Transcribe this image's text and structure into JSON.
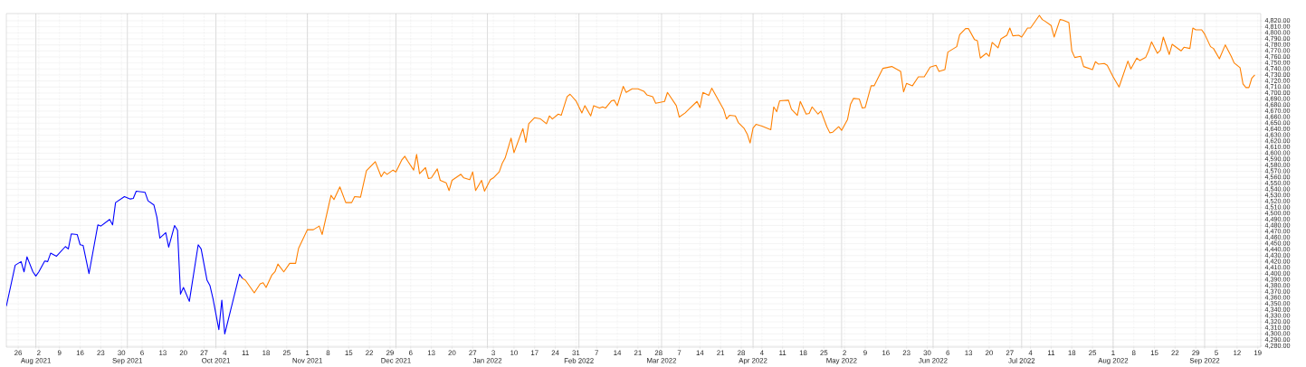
{
  "chart_data": {
    "type": "line",
    "xlim": [
      "2021-07-22",
      "2022-09-20"
    ],
    "ylim": [
      4278,
      4832
    ],
    "grid": true,
    "xticks": [
      {
        "value": "2021-07-26",
        "label": "26"
      },
      {
        "value": "2021-08-02",
        "label": "2"
      },
      {
        "value": "2021-08-09",
        "label": "9"
      },
      {
        "value": "2021-08-16",
        "label": "16"
      },
      {
        "value": "2021-08-23",
        "label": "23"
      },
      {
        "value": "2021-08-30",
        "label": "30"
      },
      {
        "value": "2021-09-06",
        "label": "6"
      },
      {
        "value": "2021-09-13",
        "label": "13"
      },
      {
        "value": "2021-09-20",
        "label": "20"
      },
      {
        "value": "2021-09-27",
        "label": "27"
      },
      {
        "value": "2021-10-04",
        "label": "4"
      },
      {
        "value": "2021-10-11",
        "label": "11"
      },
      {
        "value": "2021-10-18",
        "label": "18"
      },
      {
        "value": "2021-10-25",
        "label": "25"
      },
      {
        "value": "2021-11-01",
        "label": "1"
      },
      {
        "value": "2021-11-08",
        "label": "8"
      },
      {
        "value": "2021-11-15",
        "label": "15"
      },
      {
        "value": "2021-11-22",
        "label": "22"
      },
      {
        "value": "2021-11-29",
        "label": "29"
      },
      {
        "value": "2021-12-06",
        "label": "6"
      },
      {
        "value": "2021-12-13",
        "label": "13"
      },
      {
        "value": "2021-12-20",
        "label": "20"
      },
      {
        "value": "2021-12-27",
        "label": "27"
      },
      {
        "value": "2022-01-03",
        "label": "3"
      },
      {
        "value": "2022-01-10",
        "label": "10"
      },
      {
        "value": "2022-01-17",
        "label": "17"
      },
      {
        "value": "2022-01-24",
        "label": "24"
      },
      {
        "value": "2022-01-31",
        "label": "31"
      },
      {
        "value": "2022-02-07",
        "label": "7"
      },
      {
        "value": "2022-02-14",
        "label": "14"
      },
      {
        "value": "2022-02-21",
        "label": "21"
      },
      {
        "value": "2022-02-28",
        "label": "28"
      },
      {
        "value": "2022-03-07",
        "label": "7"
      },
      {
        "value": "2022-03-14",
        "label": "14"
      },
      {
        "value": "2022-03-21",
        "label": "21"
      },
      {
        "value": "2022-03-28",
        "label": "28"
      },
      {
        "value": "2022-04-04",
        "label": "4"
      },
      {
        "value": "2022-04-11",
        "label": "11"
      },
      {
        "value": "2022-04-18",
        "label": "18"
      },
      {
        "value": "2022-04-25",
        "label": "25"
      },
      {
        "value": "2022-05-02",
        "label": "2"
      },
      {
        "value": "2022-05-09",
        "label": "9"
      },
      {
        "value": "2022-05-16",
        "label": "16"
      },
      {
        "value": "2022-05-23",
        "label": "23"
      },
      {
        "value": "2022-05-30",
        "label": "30"
      },
      {
        "value": "2022-06-06",
        "label": "6"
      },
      {
        "value": "2022-06-13",
        "label": "13"
      },
      {
        "value": "2022-06-20",
        "label": "20"
      },
      {
        "value": "2022-06-27",
        "label": "27"
      },
      {
        "value": "2022-07-04",
        "label": "4"
      },
      {
        "value": "2022-07-11",
        "label": "11"
      },
      {
        "value": "2022-07-18",
        "label": "18"
      },
      {
        "value": "2022-07-25",
        "label": "25"
      },
      {
        "value": "2022-08-01",
        "label": "1"
      },
      {
        "value": "2022-08-08",
        "label": "8"
      },
      {
        "value": "2022-08-15",
        "label": "15"
      },
      {
        "value": "2022-08-22",
        "label": "22"
      },
      {
        "value": "2022-08-29",
        "label": "29"
      },
      {
        "value": "2022-09-05",
        "label": "5"
      },
      {
        "value": "2022-09-12",
        "label": "12"
      },
      {
        "value": "2022-09-19",
        "label": "19"
      }
    ],
    "x2lim": [
      "2021-07-22",
      "2022-09-20"
    ],
    "x2ticks": [
      {
        "value": "2021-08",
        "label": "Aug 2021"
      },
      {
        "value": "2021-09",
        "label": "Sep 2021"
      },
      {
        "value": "2021-10",
        "label": "Oct 2021"
      },
      {
        "value": "2021-11",
        "label": "Nov 2021"
      },
      {
        "value": "2021-12",
        "label": "Dec 2021"
      },
      {
        "value": "2022-01",
        "label": "Jan 2022"
      },
      {
        "value": "2022-02",
        "label": "Feb 2022"
      },
      {
        "value": "2022-03",
        "label": "Mar 2022"
      },
      {
        "value": "2022-04",
        "label": "Apr 2022"
      },
      {
        "value": "2022-05",
        "label": "May 2022"
      },
      {
        "value": "2022-06",
        "label": "Jun 2022"
      },
      {
        "value": "2022-07",
        "label": "Jul 2022"
      },
      {
        "value": "2022-08",
        "label": "Aug 2022"
      },
      {
        "value": "2022-09",
        "label": "Sep 2022"
      }
    ],
    "yticks": [
      {
        "value": 4280,
        "label": "4,280.00"
      },
      {
        "value": 4290,
        "label": "4,290.00"
      },
      {
        "value": 4300,
        "label": "4,300.00"
      },
      {
        "value": 4310,
        "label": "4,310.00"
      },
      {
        "value": 4320,
        "label": "4,320.00"
      },
      {
        "value": 4330,
        "label": "4,330.00"
      },
      {
        "value": 4340,
        "label": "4,340.00"
      },
      {
        "value": 4350,
        "label": "4,350.00"
      },
      {
        "value": 4360,
        "label": "4,360.00"
      },
      {
        "value": 4370,
        "label": "4,370.00"
      },
      {
        "value": 4380,
        "label": "4,380.00"
      },
      {
        "value": 4390,
        "label": "4,390.00"
      },
      {
        "value": 4400,
        "label": "4,400.00"
      },
      {
        "value": 4410,
        "label": "4,410.00"
      },
      {
        "value": 4420,
        "label": "4,420.00"
      },
      {
        "value": 4430,
        "label": "4,430.00"
      },
      {
        "value": 4440,
        "label": "4,440.00"
      },
      {
        "value": 4450,
        "label": "4,450.00"
      },
      {
        "value": 4460,
        "label": "4,460.00"
      },
      {
        "value": 4470,
        "label": "4,470.00"
      },
      {
        "value": 4480,
        "label": "4,480.00"
      },
      {
        "value": 4490,
        "label": "4,490.00"
      },
      {
        "value": 4500,
        "label": "4,500.00"
      },
      {
        "value": 4510,
        "label": "4,510.00"
      },
      {
        "value": 4520,
        "label": "4,520.00"
      },
      {
        "value": 4530,
        "label": "4,530.00"
      },
      {
        "value": 4540,
        "label": "4,540.00"
      },
      {
        "value": 4550,
        "label": "4,550.00"
      },
      {
        "value": 4560,
        "label": "4,560.00"
      },
      {
        "value": 4570,
        "label": "4,570.00"
      },
      {
        "value": 4580,
        "label": "4,580.00"
      },
      {
        "value": 4590,
        "label": "4,590.00"
      },
      {
        "value": 4600,
        "label": "4,600.00"
      },
      {
        "value": 4610,
        "label": "4,610.00"
      },
      {
        "value": 4620,
        "label": "4,620.00"
      },
      {
        "value": 4630,
        "label": "4,630.00"
      },
      {
        "value": 4640,
        "label": "4,640.00"
      },
      {
        "value": 4650,
        "label": "4,650.00"
      },
      {
        "value": 4660,
        "label": "4,660.00"
      },
      {
        "value": 4670,
        "label": "4,670.00"
      },
      {
        "value": 4680,
        "label": "4,680.00"
      },
      {
        "value": 4690,
        "label": "4,690.00"
      },
      {
        "value": 4700,
        "label": "4,700.00"
      },
      {
        "value": 4710,
        "label": "4,710.00"
      },
      {
        "value": 4720,
        "label": "4,720.00"
      },
      {
        "value": 4730,
        "label": "4,730.00"
      },
      {
        "value": 4740,
        "label": "4,740.00"
      },
      {
        "value": 4750,
        "label": "4,750.00"
      },
      {
        "value": 4760,
        "label": "4,760.00"
      },
      {
        "value": 4770,
        "label": "4,770.00"
      },
      {
        "value": 4780,
        "label": "4,780.00"
      },
      {
        "value": 4790,
        "label": "4,790.00"
      },
      {
        "value": 4800,
        "label": "4,800.00"
      },
      {
        "value": 4810,
        "label": "4,810.00"
      },
      {
        "value": 4820,
        "label": "4,820.00"
      }
    ],
    "series": [
      {
        "color": "#0000ff",
        "x": [
          "2021-07-22",
          "2021-07-25",
          "2021-07-27",
          "2021-07-28",
          "2021-07-29",
          "2021-07-31",
          "2021-08-01",
          "2021-08-02",
          "2021-08-04",
          "2021-08-05",
          "2021-08-06",
          "2021-08-08",
          "2021-08-11",
          "2021-08-12",
          "2021-08-13",
          "2021-08-15",
          "2021-08-16",
          "2021-08-17",
          "2021-08-19",
          "2021-08-22",
          "2021-08-23",
          "2021-08-26",
          "2021-08-27",
          "2021-08-28",
          "2021-08-31",
          "2021-09-02",
          "2021-09-03",
          "2021-09-04",
          "2021-09-07",
          "2021-09-08",
          "2021-09-10",
          "2021-09-11",
          "2021-09-12",
          "2021-09-14",
          "2021-09-15",
          "2021-09-17",
          "2021-09-18",
          "2021-09-19",
          "2021-09-20",
          "2021-09-22",
          "2021-09-25",
          "2021-09-26",
          "2021-09-28",
          "2021-09-29",
          "2021-09-30",
          "2021-10-02",
          "2021-10-03",
          "2021-10-04",
          "2021-10-09",
          "2021-10-10"
        ],
        "values": [
          4346,
          4414,
          4420,
          4403,
          4428,
          4403,
          4396,
          4403,
          4421,
          4420,
          4434,
          4429,
          4445,
          4441,
          4466,
          4465,
          4448,
          4447,
          4400,
          4481,
          4479,
          4490,
          4481,
          4518,
          4528,
          4524,
          4525,
          4537,
          4535,
          4521,
          4514,
          4494,
          4459,
          4468,
          4444,
          4480,
          4472,
          4366,
          4377,
          4354,
          4448,
          4441,
          4389,
          4380,
          4359,
          4307,
          4356,
          4300,
          4399,
          4392
        ]
      },
      {
        "color": "#ff8000",
        "x": [
          "2021-10-10",
          "2021-10-11",
          "2021-10-14",
          "2021-10-16",
          "2021-10-17",
          "2021-10-18",
          "2021-10-20",
          "2021-10-21",
          "2021-10-22",
          "2021-10-24",
          "2021-10-26",
          "2021-10-28",
          "2021-10-29",
          "2021-11-01",
          "2021-11-03",
          "2021-11-05",
          "2021-11-06",
          "2021-11-09",
          "2021-11-10",
          "2021-11-12",
          "2021-11-14",
          "2021-11-16",
          "2021-11-17",
          "2021-11-19",
          "2021-11-21",
          "2021-11-24",
          "2021-11-26",
          "2021-11-27",
          "2021-11-28",
          "2021-11-30",
          "2021-12-01",
          "2021-12-03",
          "2021-12-04",
          "2021-12-05",
          "2021-12-07",
          "2021-12-08",
          "2021-12-09",
          "2021-12-11",
          "2021-12-12",
          "2021-12-13",
          "2021-12-15",
          "2021-12-16",
          "2021-12-18",
          "2021-12-19",
          "2021-12-20",
          "2021-12-23",
          "2021-12-24",
          "2021-12-26",
          "2021-12-27",
          "2021-12-28",
          "2021-12-30",
          "2021-12-31",
          "2022-01-02",
          "2022-01-03",
          "2022-01-05",
          "2022-01-06",
          "2022-01-07",
          "2022-01-09",
          "2022-01-10",
          "2022-01-13",
          "2022-01-14",
          "2022-01-15",
          "2022-01-17",
          "2022-01-19",
          "2022-01-21",
          "2022-01-22",
          "2022-01-23",
          "2022-01-25",
          "2022-01-26",
          "2022-01-28",
          "2022-01-29",
          "2022-01-31",
          "2022-02-02",
          "2022-02-03",
          "2022-02-05",
          "2022-02-06",
          "2022-02-08",
          "2022-02-09",
          "2022-02-10",
          "2022-02-12",
          "2022-02-13",
          "2022-02-14",
          "2022-02-16",
          "2022-02-17",
          "2022-02-19",
          "2022-02-21",
          "2022-02-23",
          "2022-02-24",
          "2022-02-26",
          "2022-02-27",
          "2022-03-02",
          "2022-03-03",
          "2022-03-06",
          "2022-03-07",
          "2022-03-09",
          "2022-03-10",
          "2022-03-13",
          "2022-03-14",
          "2022-03-15",
          "2022-03-17",
          "2022-03-18",
          "2022-03-22",
          "2022-03-23",
          "2022-03-24",
          "2022-03-26",
          "2022-03-27",
          "2022-03-29",
          "2022-03-30",
          "2022-03-31",
          "2022-04-01",
          "2022-04-02",
          "2022-04-04",
          "2022-04-07",
          "2022-04-08",
          "2022-04-09",
          "2022-04-10",
          "2022-04-13",
          "2022-04-14",
          "2022-04-16",
          "2022-04-17",
          "2022-04-19",
          "2022-04-20",
          "2022-04-21",
          "2022-04-23",
          "2022-04-24",
          "2022-04-26",
          "2022-04-27",
          "2022-04-28",
          "2022-04-30",
          "2022-05-01",
          "2022-05-03",
          "2022-05-04",
          "2022-05-05",
          "2022-05-07",
          "2022-05-08",
          "2022-05-09",
          "2022-05-11",
          "2022-05-12",
          "2022-05-15",
          "2022-05-18",
          "2022-05-21",
          "2022-05-22",
          "2022-05-23",
          "2022-05-25",
          "2022-05-27",
          "2022-05-29",
          "2022-05-31",
          "2022-06-02",
          "2022-06-03",
          "2022-06-05",
          "2022-06-06",
          "2022-06-09",
          "2022-06-10",
          "2022-06-12",
          "2022-06-13",
          "2022-06-15",
          "2022-06-16",
          "2022-06-17",
          "2022-06-19",
          "2022-06-20",
          "2022-06-21",
          "2022-06-23",
          "2022-06-24",
          "2022-06-26",
          "2022-06-27",
          "2022-06-28",
          "2022-06-30",
          "2022-07-01",
          "2022-07-03",
          "2022-07-04",
          "2022-07-07",
          "2022-07-08",
          "2022-07-09",
          "2022-07-11",
          "2022-07-12",
          "2022-07-14",
          "2022-07-15",
          "2022-07-17",
          "2022-07-18",
          "2022-07-19",
          "2022-07-21",
          "2022-07-22",
          "2022-07-25",
          "2022-07-26",
          "2022-07-27",
          "2022-07-29",
          "2022-07-30",
          "2022-08-01",
          "2022-08-03",
          "2022-08-06",
          "2022-08-07",
          "2022-08-09",
          "2022-08-10",
          "2022-08-12",
          "2022-08-13",
          "2022-08-14",
          "2022-08-16",
          "2022-08-17",
          "2022-08-18",
          "2022-08-20",
          "2022-08-21",
          "2022-08-24",
          "2022-08-25",
          "2022-08-27",
          "2022-08-28",
          "2022-08-29",
          "2022-08-31",
          "2022-09-01",
          "2022-09-03",
          "2022-09-04",
          "2022-09-06",
          "2022-09-08",
          "2022-09-10",
          "2022-09-11",
          "2022-09-13",
          "2022-09-14",
          "2022-09-15",
          "2022-09-16",
          "2022-09-17",
          "2022-09-18"
        ],
        "values": [
          4392,
          4389,
          4368,
          4383,
          4385,
          4377,
          4398,
          4403,
          4416,
          4403,
          4417,
          4417,
          4442,
          4473,
          4473,
          4479,
          4465,
          4530,
          4523,
          4544,
          4518,
          4518,
          4528,
          4527,
          4571,
          4586,
          4561,
          4569,
          4565,
          4572,
          4569,
          4589,
          4595,
          4587,
          4572,
          4598,
          4566,
          4576,
          4558,
          4559,
          4574,
          4555,
          4551,
          4538,
          4555,
          4565,
          4559,
          4556,
          4569,
          4538,
          4555,
          4537,
          4556,
          4559,
          4569,
          4583,
          4592,
          4625,
          4601,
          4641,
          4618,
          4649,
          4659,
          4657,
          4649,
          4662,
          4657,
          4665,
          4663,
          4694,
          4698,
          4687,
          4667,
          4679,
          4662,
          4679,
          4675,
          4677,
          4675,
          4687,
          4688,
          4679,
          4711,
          4701,
          4707,
          4707,
          4703,
          4697,
          4694,
          4683,
          4686,
          4701,
          4679,
          4660,
          4667,
          4672,
          4686,
          4676,
          4701,
          4696,
          4708,
          4673,
          4657,
          4663,
          4662,
          4651,
          4641,
          4632,
          4617,
          4642,
          4648,
          4645,
          4639,
          4677,
          4669,
          4687,
          4688,
          4673,
          4663,
          4686,
          4665,
          4666,
          4677,
          4665,
          4670,
          4644,
          4634,
          4635,
          4644,
          4638,
          4656,
          4681,
          4691,
          4690,
          4675,
          4676,
          4712,
          4712,
          4741,
          4744,
          4736,
          4702,
          4716,
          4712,
          4727,
          4727,
          4743,
          4746,
          4736,
          4739,
          4768,
          4777,
          4797,
          4807,
          4807,
          4789,
          4787,
          4758,
          4766,
          4761,
          4784,
          4775,
          4790,
          4796,
          4808,
          4795,
          4796,
          4793,
          4808,
          4808,
          4829,
          4822,
          4819,
          4812,
          4793,
          4822,
          4821,
          4817,
          4770,
          4759,
          4761,
          4744,
          4739,
          4752,
          4748,
          4749,
          4746,
          4727,
          4710,
          4753,
          4740,
          4758,
          4754,
          4759,
          4770,
          4785,
          4766,
          4771,
          4793,
          4764,
          4781,
          4770,
          4776,
          4774,
          4808,
          4805,
          4805,
          4798,
          4777,
          4774,
          4757,
          4780,
          4761,
          4750,
          4742,
          4715,
          4709,
          4709,
          4725,
          4730
        ]
      }
    ]
  }
}
